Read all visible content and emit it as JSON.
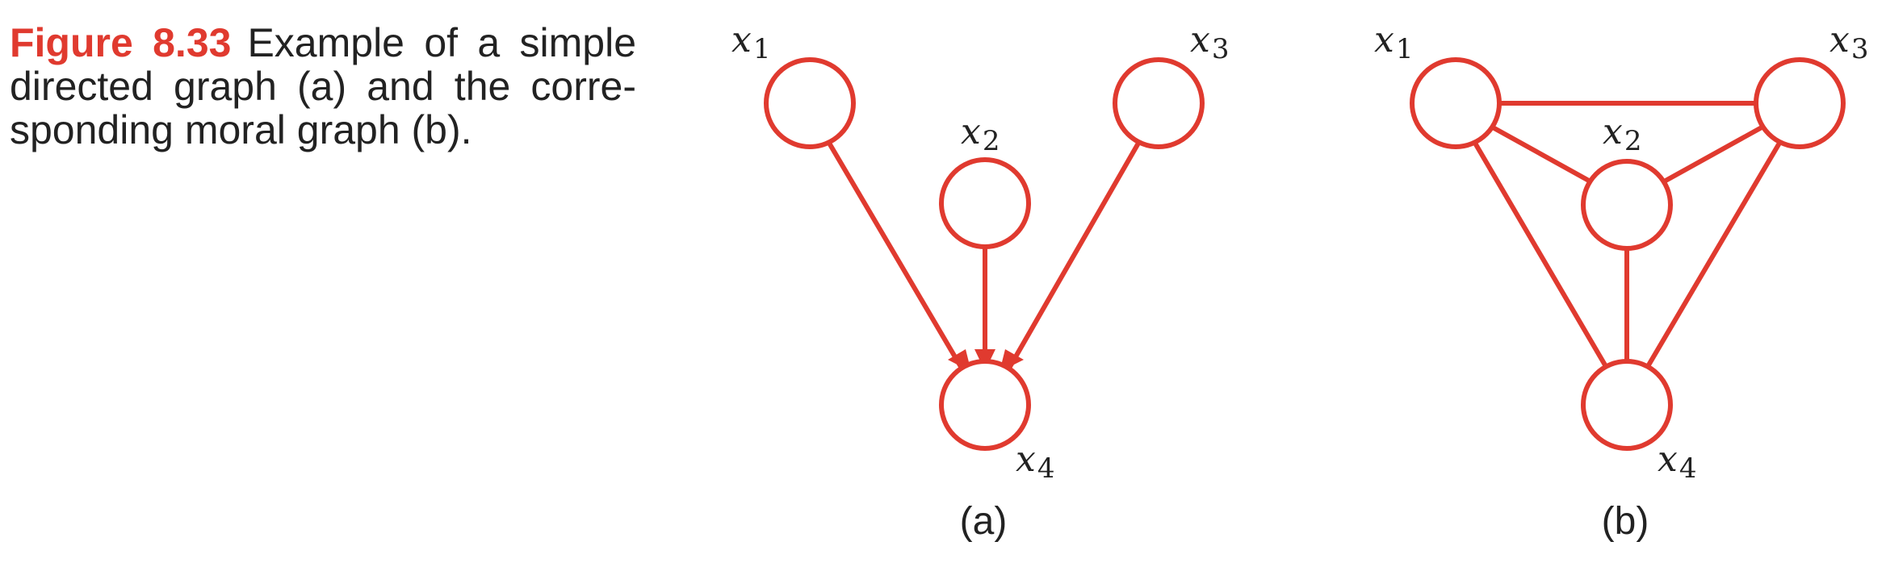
{
  "caption": {
    "figure_label": "Figure 8.33",
    "line1": "Example of a simple",
    "line2": "directed graph (a) and the corre-",
    "line3": "sponding moral graph (b)."
  },
  "panels": [
    {
      "label": "(a)",
      "nodes": [
        {
          "name": "x",
          "sub": "1"
        },
        {
          "name": "x",
          "sub": "2"
        },
        {
          "name": "x",
          "sub": "3"
        },
        {
          "name": "x",
          "sub": "4"
        }
      ],
      "edges": "directed"
    },
    {
      "label": "(b)",
      "nodes": [
        {
          "name": "x",
          "sub": "1"
        },
        {
          "name": "x",
          "sub": "2"
        },
        {
          "name": "x",
          "sub": "3"
        },
        {
          "name": "x",
          "sub": "4"
        }
      ],
      "edges": "undirected"
    }
  ],
  "colors": {
    "accent": "#e03a2f",
    "text": "#222222"
  }
}
